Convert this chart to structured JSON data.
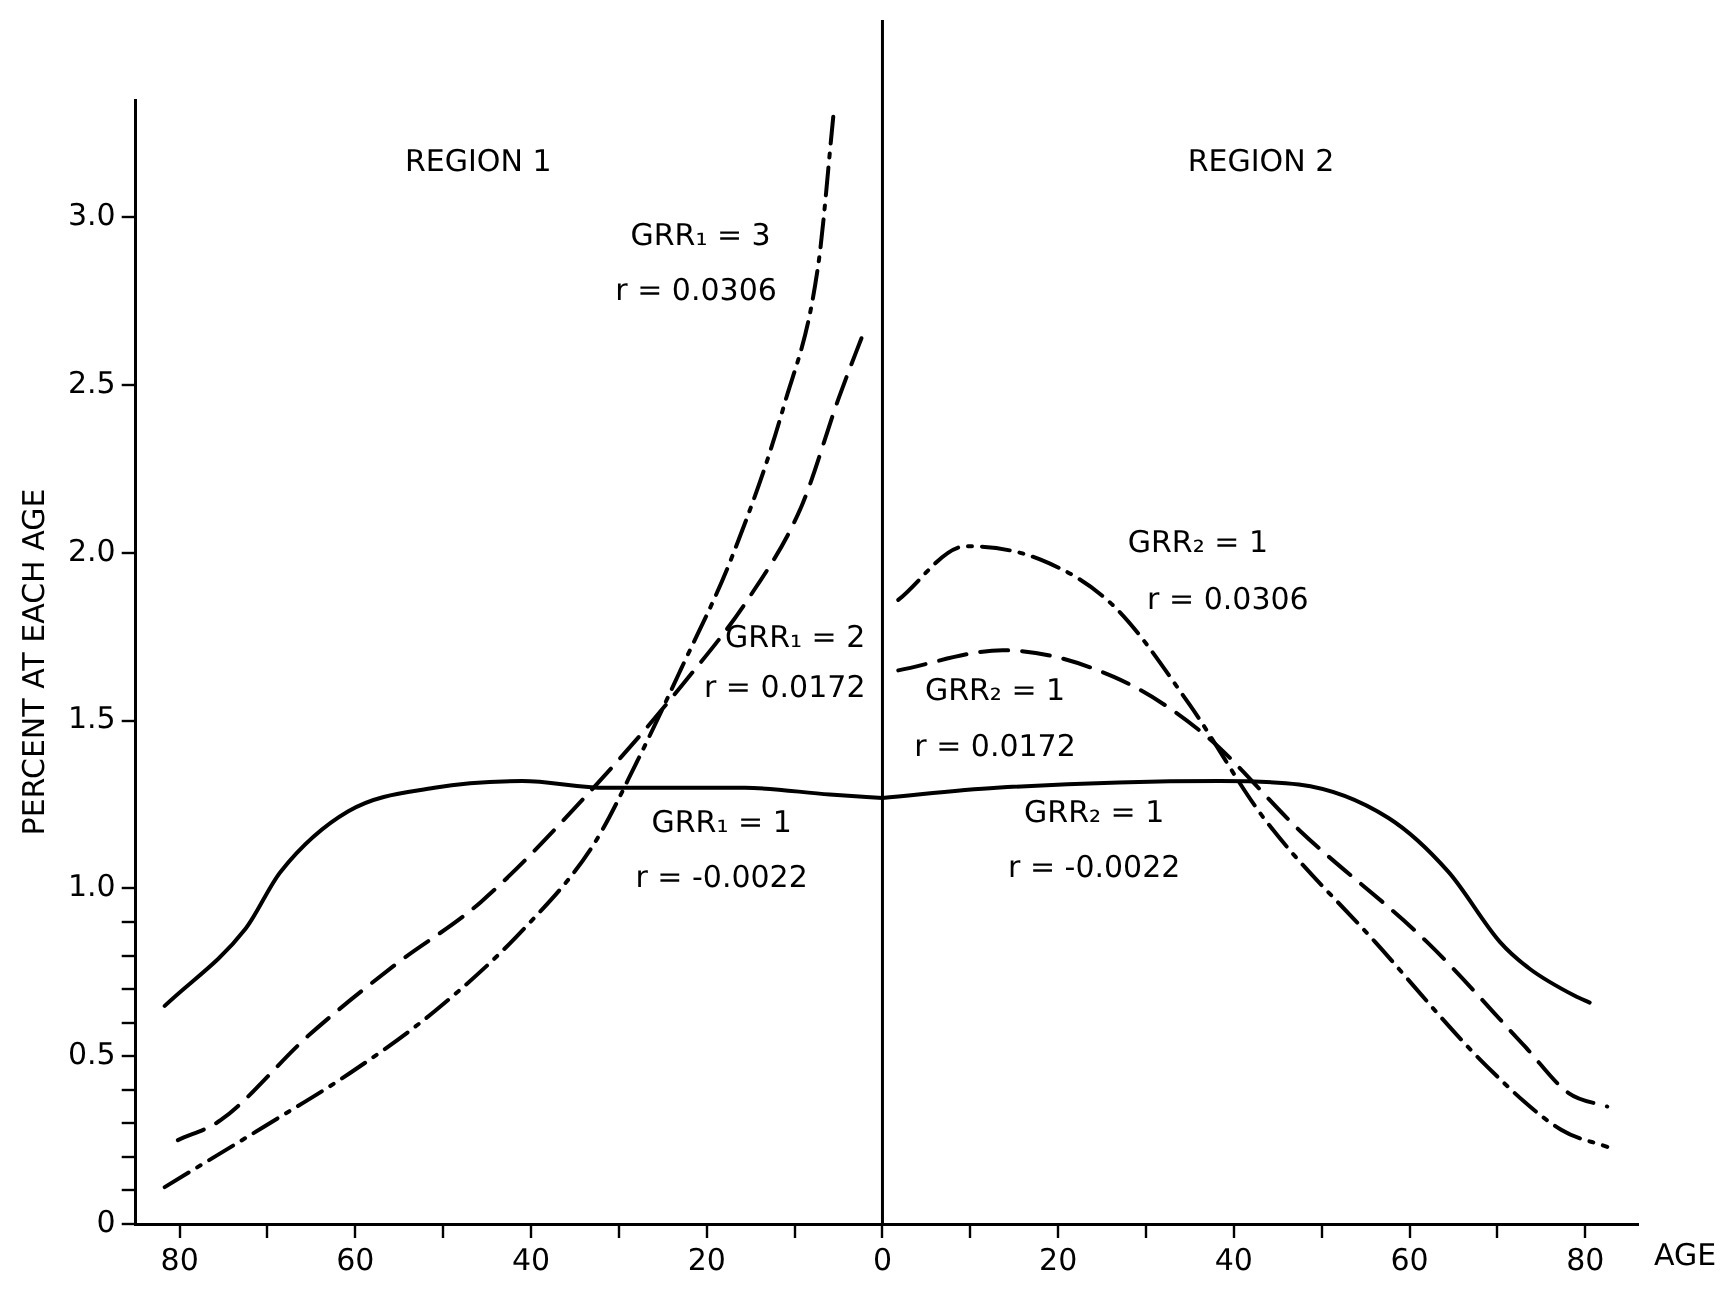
{
  "chart_data": {
    "type": "line",
    "ylabel": "PERCENT AT EACH AGE",
    "xlabel": "AGE",
    "xlim": [
      -85,
      86
    ],
    "ylim": [
      0,
      3.35
    ],
    "xticks": [
      {
        "value": -80,
        "label": "80"
      },
      {
        "value": -70,
        "label": null
      },
      {
        "value": -60,
        "label": "60"
      },
      {
        "value": -50,
        "label": null
      },
      {
        "value": -40,
        "label": "40"
      },
      {
        "value": -30,
        "label": null
      },
      {
        "value": -20,
        "label": "20"
      },
      {
        "value": -10,
        "label": null
      },
      0,
      {
        "value": 10,
        "label": null
      },
      20,
      {
        "value": 30,
        "label": null
      },
      40,
      {
        "value": 50,
        "label": null
      },
      60,
      {
        "value": 70,
        "label": null
      },
      80
    ],
    "yticks": [
      0,
      {
        "value": 0.1,
        "label": null
      },
      {
        "value": 0.2,
        "label": null
      },
      {
        "value": 0.3,
        "label": null
      },
      {
        "value": 0.4,
        "label": null
      },
      0.5,
      {
        "value": 0.6,
        "label": null
      },
      {
        "value": 0.7,
        "label": null
      },
      {
        "value": 0.8,
        "label": null
      },
      {
        "value": 0.9,
        "label": null
      },
      {
        "value": 1,
        "label": "1.0"
      },
      1.5,
      {
        "value": 2,
        "label": "2.0"
      },
      2.5,
      {
        "value": 3,
        "label": "3.0"
      }
    ],
    "grid": false,
    "legend": false,
    "marker": "none",
    "series": [
      {
        "color": "#000000",
        "line_style": "solid",
        "x": [
          -81.7,
          -72.5,
          -68.5,
          -60.8,
          -51,
          -41,
          -31.5,
          -15.7,
          -6,
          0
        ],
        "values": [
          0.65,
          0.88,
          1.05,
          1.23,
          1.3,
          1.32,
          1.3,
          1.3,
          1.28,
          1.27
        ]
      },
      {
        "color": "#000000",
        "line_style": "dashed",
        "x": [
          -80.2,
          -75.3,
          -65.4,
          -55.6,
          -45.7,
          -32.9,
          -23,
          -15.1,
          -9.2,
          -5,
          -2.1
        ],
        "values": [
          0.25,
          0.31,
          0.56,
          0.77,
          0.96,
          1.3,
          1.6,
          1.87,
          2.14,
          2.46,
          2.66
        ]
      },
      {
        "color": "#000000",
        "line_style": "dashdot",
        "x": [
          -81.7,
          -70.4,
          -60.6,
          -50.7,
          -40.8,
          -32.9,
          -27.9,
          -23,
          -17.1,
          -11.2,
          -7.3,
          -5.6
        ],
        "values": [
          0.11,
          0.29,
          0.45,
          0.64,
          0.88,
          1.13,
          1.38,
          1.65,
          1.99,
          2.44,
          2.86,
          3.3
        ]
      },
      {
        "color": "#000000",
        "line_style": "solid",
        "x": [
          0,
          13,
          38.4,
          47.4,
          57.6,
          64.4,
          70.3,
          73.7,
          78.8,
          80.5
        ],
        "values": [
          1.27,
          1.3,
          1.32,
          1.31,
          1.21,
          1.05,
          0.84,
          0.76,
          0.68,
          0.66
        ]
      },
      {
        "color": "#000000",
        "line_style": "dashed",
        "x": [
          1.8,
          13.7,
          26.4,
          36.6,
          47.6,
          62,
          73.1,
          78.1,
          82.5
        ],
        "values": [
          1.65,
          1.71,
          1.63,
          1.46,
          1.17,
          0.84,
          0.53,
          0.39,
          0.35
        ]
      },
      {
        "color": "#000000",
        "line_style": "dashdot",
        "x": [
          1.8,
          9.5,
          18,
          26.4,
          34.9,
          43.4,
          56.1,
          68.8,
          77.3,
          82.5
        ],
        "values": [
          1.86,
          2.02,
          1.98,
          1.84,
          1.55,
          1.21,
          0.84,
          0.47,
          0.28,
          0.23
        ]
      }
    ],
    "ref_lines": [
      {
        "axis": "x",
        "value": 0,
        "color": "#000000"
      }
    ],
    "annotations": [
      "REGION 1",
      "REGION 2",
      "GRR₁ = 3",
      "r = 0.0306",
      "GRR₁ = 2",
      "r = 0.0172",
      "GRR₁ = 1",
      "r = -0.0022",
      "GRR₂ = 1",
      "r = 0.0306",
      "GRR₂ = 1",
      "r = 0.0172",
      "GRR₂ = 1",
      "r = -0.0022"
    ]
  }
}
